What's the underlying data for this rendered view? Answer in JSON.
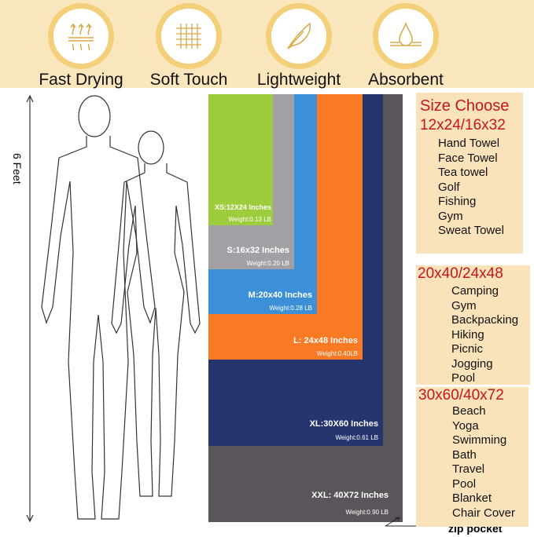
{
  "features": [
    {
      "label": "Fast Drying",
      "icon": "heat-waves-icon"
    },
    {
      "label": "Soft Touch",
      "icon": "fabric-weave-icon"
    },
    {
      "label": "Lightweight",
      "icon": "feather-icon"
    },
    {
      "label": "Absorbent",
      "icon": "water-drop-icon"
    }
  ],
  "height_label": "6 Feet",
  "sizes": [
    {
      "label": "XXL: 40X72 Inches",
      "weight": "Weight:0.90 LB",
      "color": "#5a555a"
    },
    {
      "label": "XL:30X60 Inches",
      "weight": "Weight:0.61 LB",
      "color": "#27356f"
    },
    {
      "label": "L: 24x48 Inches",
      "weight": "Weight:0.40LB",
      "color": "#f97a22"
    },
    {
      "label": "M:20x40 Inches",
      "weight": "Weight:0.28 LB",
      "color": "#3b90d8"
    },
    {
      "label": "S:16x32 Inches",
      "weight": "Weight:0.20 LB",
      "color": "#a3a0a5"
    },
    {
      "label": "XS:12X24 Inches",
      "weight": "Weight:0.13 LB",
      "color": "#9dcd3d"
    }
  ],
  "zip_pocket": "zip pocket",
  "panel": {
    "title": "Size Choose",
    "groups": [
      {
        "heading": "12x24/16x32",
        "items": [
          "Hand Towel",
          "Face Towel",
          "Tea towel",
          "Golf",
          "Fishing",
          "Gym",
          "Sweat Towel"
        ]
      },
      {
        "heading": "20x40/24x48",
        "items": [
          "Camping",
          "Gym",
          "Backpacking",
          "Hiking",
          "Picnic",
          "Jogging",
          "Pool"
        ]
      },
      {
        "heading": "30x60/40x72",
        "items": [
          "Beach",
          "Yoga",
          "Swimming",
          "Bath",
          "Travel",
          "Pool",
          "Blanket",
          "Chair Cover"
        ]
      }
    ]
  }
}
